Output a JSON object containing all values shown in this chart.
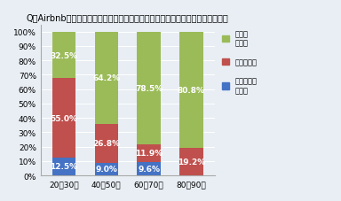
{
  "title": "Q：Airbnbなどを利用しての「民泊」経営をやってみたいですか？　（年代別）",
  "categories": [
    "20～30代",
    "40～50代",
    "60～70代",
    "80～90代"
  ],
  "series": {
    "ぜひやってみたい": [
      12.5,
      9.0,
      9.6,
      0.0
    ],
    "検討したい": [
      55.0,
      26.8,
      11.9,
      19.2
    ],
    "考えていない": [
      32.5,
      64.2,
      78.5,
      80.8
    ]
  },
  "colors": {
    "ぜひやってみたい": "#4472C4",
    "検討したい": "#C0504D",
    "考えていない": "#9BBB59"
  },
  "ylim": [
    0,
    105
  ],
  "yticks": [
    0,
    10,
    20,
    30,
    40,
    50,
    60,
    70,
    80,
    90,
    100
  ],
  "ytick_labels": [
    "0%",
    "10%",
    "20%",
    "30%",
    "40%",
    "50%",
    "60%",
    "70%",
    "80%",
    "90%",
    "100%"
  ],
  "background_color": "#E8EEF4",
  "plot_bg_color": "#E8EEF4",
  "title_fontsize": 7.0,
  "label_fontsize": 6.5,
  "tick_fontsize": 6.5,
  "legend_fontsize": 6.0,
  "bar_width": 0.55
}
